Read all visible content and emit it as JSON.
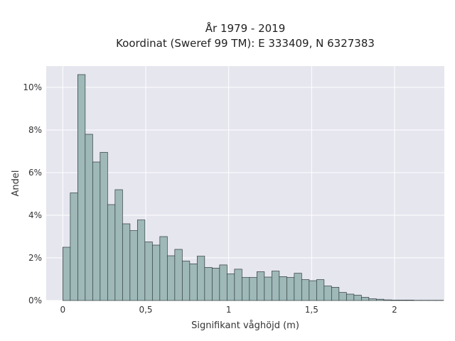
{
  "chart_data": {
    "type": "bar",
    "title": "År 1979 - 2019",
    "subtitle": "Koordinat (Sweref 99 TM): E 333409, N 6327383",
    "xlabel": "Signifikant våghöjd (m)",
    "ylabel": "Andel",
    "bin_width": 0.045,
    "x_start": 0.0,
    "values": [
      2.5,
      5.05,
      10.6,
      7.8,
      6.5,
      6.95,
      4.5,
      5.2,
      3.6,
      3.28,
      3.78,
      2.75,
      2.6,
      3.0,
      2.1,
      2.4,
      1.85,
      1.72,
      2.08,
      1.55,
      1.52,
      1.67,
      1.25,
      1.47,
      1.08,
      1.08,
      1.35,
      1.1,
      1.38,
      1.12,
      1.08,
      1.28,
      0.98,
      0.93,
      0.98,
      0.68,
      0.62,
      0.38,
      0.3,
      0.25,
      0.15,
      0.08,
      0.06,
      0.03,
      0.02,
      0.02,
      0.02,
      0.01,
      0.01,
      0.01,
      0.01
    ],
    "xlim": [
      -0.1,
      2.3
    ],
    "ylim": [
      0,
      11
    ],
    "xticks": [
      0,
      0.5,
      1,
      1.5,
      2
    ],
    "xtick_labels": [
      "0",
      "0,5",
      "1",
      "1,5",
      "2"
    ],
    "yticks": [
      0,
      2,
      4,
      6,
      8,
      10
    ],
    "ytick_labels": [
      "0%",
      "2%",
      "4%",
      "6%",
      "8%",
      "10%"
    ],
    "grid": true,
    "bar_color": "#9fb8b8",
    "bar_edge_color": "#2e3b3b",
    "plot_background": "#e6e6ef"
  }
}
